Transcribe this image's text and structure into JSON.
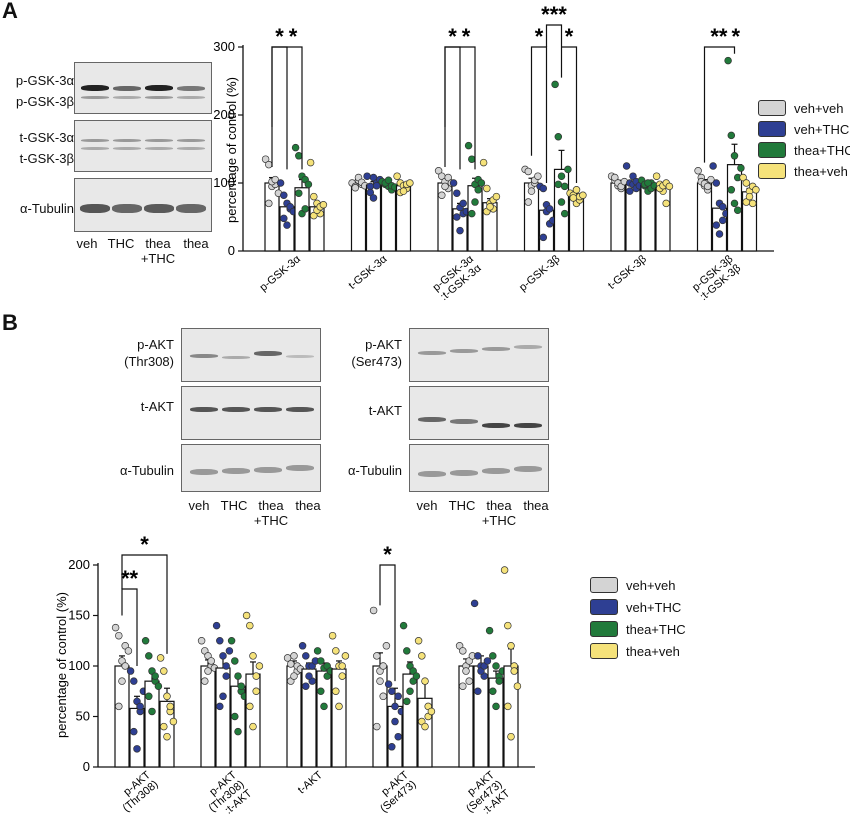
{
  "panels": {
    "a": "A",
    "b": "B"
  },
  "legend": [
    {
      "label": "veh+veh",
      "color": "#d4d4d4"
    },
    {
      "label": "veh+THC",
      "color": "#2e3f93"
    },
    {
      "label": "thea+THC",
      "color": "#217a3b"
    },
    {
      "label": "thea+veh",
      "color": "#f5e27a"
    }
  ],
  "blots_a": {
    "labels": [
      "p-GSK-3α",
      "p-GSK-3β",
      "t-GSK-3α",
      "t-GSK-3β",
      "α-Tubulin"
    ],
    "lanes": [
      "veh",
      "THC",
      "thea\n+THC",
      "thea"
    ]
  },
  "blots_b_left": {
    "labels": [
      "p-AKT\n(Thr308)",
      "t-AKT",
      "α-Tubulin"
    ],
    "lanes": [
      "veh",
      "THC",
      "thea\n+THC",
      "thea"
    ]
  },
  "blots_b_right": {
    "labels": [
      "p-AKT\n(Ser473)",
      "t-AKT",
      "α-Tubulin"
    ],
    "lanes": [
      "veh",
      "THC",
      "thea\n+THC",
      "thea"
    ]
  },
  "chart_data": [
    {
      "type": "bar",
      "panel": "A",
      "ylabel": "percentage of control (%)",
      "ylim": [
        0,
        300
      ],
      "yticks": [
        0,
        100,
        200,
        300
      ],
      "categories": [
        "p-GSK-3α",
        "t-GSK-3α",
        "p-GSK-3α\n:t-GSK-3α",
        "p-GSK-3β",
        "t-GSK-3β",
        "p-GSK-3β\n:t-GSK-3β"
      ],
      "series": [
        {
          "name": "veh+veh",
          "values": [
            100,
            100,
            100,
            100,
            100,
            100
          ],
          "errors": [
            8,
            3,
            5,
            7,
            4,
            5
          ],
          "points": [
            [
              135,
              127,
              95,
              98,
              70,
              102,
              105,
              85
            ],
            [
              100,
              95,
              104,
              98,
              93,
              108,
              101,
              96
            ],
            [
              118,
              110,
              102,
              92,
              82,
              95,
              108,
              100
            ],
            [
              120,
              117,
              96,
              100,
              72,
              88,
              104,
              110
            ],
            [
              110,
              104,
              96,
              92,
              108,
              100,
              95,
              102
            ],
            [
              118,
              108,
              96,
              90,
              102,
              99,
              95,
              105
            ]
          ]
        },
        {
          "name": "veh+THC",
          "values": [
            65,
            97,
            62,
            60,
            98,
            63
          ],
          "errors": [
            8,
            5,
            8,
            8,
            5,
            10
          ],
          "points": [
            [
              100,
              82,
              70,
              62,
              48,
              38,
              65,
              58
            ],
            [
              110,
              95,
              108,
              100,
              86,
              78,
              96,
              105
            ],
            [
              100,
              85,
              64,
              55,
              50,
              30,
              70,
              58
            ],
            [
              95,
              92,
              68,
              40,
              20,
              58,
              62,
              45
            ],
            [
              125,
              100,
              98,
              92,
              88,
              110,
              102,
              96
            ],
            [
              125,
              100,
              70,
              45,
              38,
              25,
              65,
              55
            ]
          ]
        },
        {
          "name": "thea+THC",
          "values": [
            93,
            97,
            96,
            120,
            97,
            127
          ],
          "errors": [
            12,
            3,
            11,
            28,
            4,
            30
          ],
          "points": [
            [
              152,
              140,
              110,
              105,
              85,
              55,
              62,
              98
            ],
            [
              102,
              98,
              95,
              90,
              100,
              104,
              96,
              94
            ],
            [
              155,
              135,
              98,
              90,
              55,
              72,
              105,
              100
            ],
            [
              245,
              168,
              110,
              95,
              98,
              72,
              55,
              120
            ],
            [
              104,
              96,
              88,
              100,
              98,
              100,
              92,
              96
            ],
            [
              280,
              170,
              140,
              108,
              90,
              70,
              60,
              122
            ]
          ]
        },
        {
          "name": "thea+veh",
          "values": [
            65,
            96,
            71,
            80,
            93,
            87
          ],
          "errors": [
            7,
            4,
            6,
            4,
            5,
            5
          ],
          "points": [
            [
              130,
              80,
              70,
              55,
              52,
              60,
              65,
              68
            ],
            [
              110,
              100,
              96,
              92,
              86,
              88,
              98,
              100
            ],
            [
              130,
              92,
              70,
              62,
              58,
              65,
              75,
              80
            ],
            [
              85,
              82,
              70,
              75,
              78,
              90,
              80,
              82
            ],
            [
              110,
              98,
              88,
              70,
              92,
              96,
              100,
              95
            ],
            [
              108,
              100,
              88,
              70,
              72,
              80,
              95,
              90
            ]
          ]
        }
      ],
      "significance": [
        {
          "category": 0,
          "stars": [
            "*",
            "*"
          ]
        },
        {
          "category": 2,
          "stars": [
            "*",
            "*"
          ]
        },
        {
          "category": 3,
          "stars": [
            "*",
            "***",
            "*"
          ]
        },
        {
          "category": 5,
          "stars": [
            "**",
            "*"
          ]
        }
      ]
    },
    {
      "type": "bar",
      "panel": "B",
      "ylabel": "percentage of control (%)",
      "ylim": [
        0,
        200
      ],
      "yticks": [
        0,
        50,
        100,
        150,
        200
      ],
      "categories": [
        "p-AKT\n(Thr308)",
        "p-AKT\n(Thr308)\n:t-AKT",
        "t-AKT",
        "p-AKT\n(Ser473)",
        "p-AKT\n(Ser473)\n:t-AKT"
      ],
      "series": [
        {
          "name": "veh+veh",
          "values": [
            100,
            100,
            100,
            100,
            100
          ],
          "errors": [
            10,
            6,
            5,
            13,
            7
          ],
          "points": [
            [
              138,
              130,
              105,
              100,
              60,
              85,
              120,
              115
            ],
            [
              125,
              115,
              110,
              100,
              85,
              95,
              105,
              98
            ],
            [
              108,
              102,
              110,
              95,
              85,
              90,
              100,
              97
            ],
            [
              155,
              110,
              85,
              70,
              40,
              95,
              100,
              120
            ],
            [
              120,
              115,
              100,
              85,
              80,
              95,
              105,
              110
            ]
          ]
        },
        {
          "name": "veh+THC",
          "values": [
            58,
            98,
            97,
            60,
            100
          ],
          "errors": [
            12,
            13,
            6,
            18,
            10
          ],
          "points": [
            [
              95,
              85,
              65,
              55,
              35,
              18,
              60,
              75
            ],
            [
              140,
              125,
              110,
              90,
              60,
              70,
              100,
              115
            ],
            [
              120,
              110,
              100,
              85,
              80,
              90,
              100,
              105
            ],
            [
              82,
              75,
              60,
              30,
              20,
              45,
              70,
              55
            ],
            [
              162,
              110,
              100,
              90,
              75,
              95,
              100,
              105
            ]
          ]
        },
        {
          "name": "thea+THC",
          "values": [
            85,
            80,
            95,
            92,
            88
          ],
          "errors": [
            8,
            12,
            8,
            12,
            7
          ],
          "points": [
            [
              125,
              110,
              95,
              85,
              70,
              55,
              90,
              80
            ],
            [
              125,
              105,
              90,
              75,
              50,
              35,
              80,
              70
            ],
            [
              115,
              105,
              98,
              90,
              75,
              60,
              100,
              95
            ],
            [
              140,
              115,
              100,
              85,
              65,
              75,
              95,
              90
            ],
            [
              135,
              110,
              100,
              90,
              75,
              60,
              85,
              95
            ]
          ]
        },
        {
          "name": "thea+veh",
          "values": [
            65,
            92,
            97,
            68,
            100
          ],
          "errors": [
            13,
            12,
            8,
            15,
            17
          ],
          "points": [
            [
              108,
              95,
              70,
              55,
              40,
              30,
              60,
              45
            ],
            [
              150,
              140,
              110,
              90,
              60,
              40,
              75,
              100
            ],
            [
              130,
              115,
              100,
              90,
              75,
              60,
              100,
              110
            ],
            [
              125,
              110,
              85,
              60,
              45,
              40,
              50,
              55
            ],
            [
              195,
              140,
              120,
              100,
              60,
              30,
              95,
              80
            ]
          ]
        }
      ],
      "significance": [
        {
          "category": 0,
          "stars": [
            "**",
            "*"
          ]
        },
        {
          "category": 3,
          "stars": [
            "*"
          ]
        }
      ]
    }
  ]
}
